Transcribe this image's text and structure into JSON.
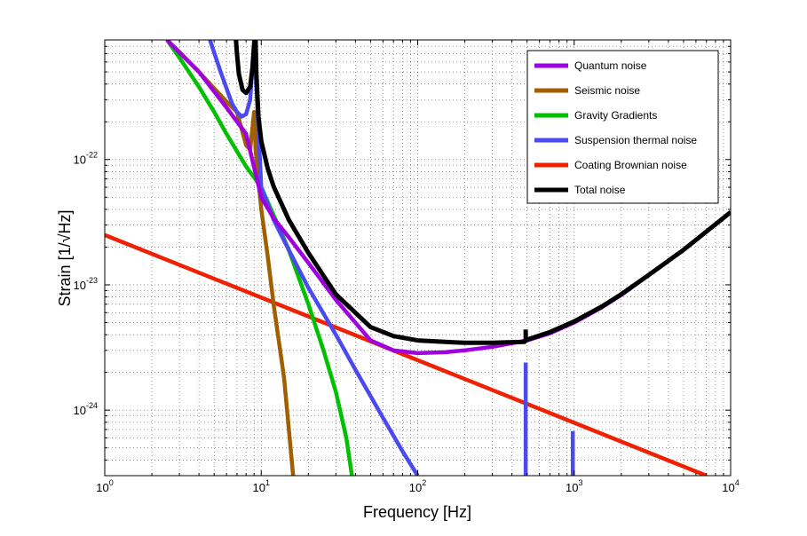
{
  "chart_data": {
    "type": "line",
    "title": "",
    "xlabel": "Frequency [Hz]",
    "ylabel": "Strain [1/√Hz]",
    "xscale": "log",
    "yscale": "log",
    "xlim": [
      1,
      10000
    ],
    "ylim": [
      3e-25,
      9e-22
    ],
    "grid": "major and minor, dotted",
    "legend_position": "top-right",
    "x_ticks": [
      {
        "base": "10",
        "exp": "0",
        "value": 1
      },
      {
        "base": "10",
        "exp": "1",
        "value": 10
      },
      {
        "base": "10",
        "exp": "2",
        "value": 100
      },
      {
        "base": "10",
        "exp": "3",
        "value": 1000
      },
      {
        "base": "10",
        "exp": "4",
        "value": 10000
      }
    ],
    "y_ticks": [
      {
        "base": "10",
        "exp": "-24",
        "value": 1e-24
      },
      {
        "base": "10",
        "exp": "-23",
        "value": 1e-23
      },
      {
        "base": "10",
        "exp": "-22",
        "value": 1e-22
      }
    ],
    "series": [
      {
        "name": "Quantum noise",
        "color": "#a000e0",
        "x": [
          2.5,
          4,
          6,
          8,
          10,
          12,
          15,
          20,
          30,
          50,
          70,
          100,
          150,
          200,
          300,
          500,
          700,
          1000,
          1500,
          2000,
          3000,
          5000,
          10000
        ],
        "y": [
          9e-22,
          5e-22,
          2.6e-22,
          1.6e-22,
          5e-23,
          3.4e-23,
          2.4e-23,
          1.5e-23,
          7.6e-24,
          3.6e-24,
          3e-24,
          2.85e-24,
          2.9e-24,
          3e-24,
          3.2e-24,
          3.6e-24,
          4.1e-24,
          5e-24,
          6.6e-24,
          8.3e-24,
          1.2e-23,
          1.9e-23,
          3.8e-23
        ]
      },
      {
        "name": "Seismic noise",
        "color": "#a06000",
        "x": [
          2.5,
          3,
          4,
          5,
          6,
          7,
          8,
          8.5,
          9,
          9.2,
          10,
          11,
          12,
          14,
          16
        ],
        "y": [
          9e-22,
          7.2e-22,
          5e-22,
          3.7e-22,
          2.9e-22,
          2.4e-22,
          1.3e-22,
          1.2e-22,
          2.4e-22,
          1.2e-22,
          4e-23,
          1.7e-23,
          7e-24,
          1.8e-24,
          3e-25
        ]
      },
      {
        "name": "Gravity Gradients",
        "color": "#00c000",
        "x": [
          2.5,
          3,
          4,
          5,
          6,
          8,
          10,
          12,
          15,
          20,
          25,
          30,
          35,
          38
        ],
        "y": [
          9e-22,
          6.5e-22,
          3.8e-22,
          2.4e-22,
          1.6e-22,
          8.8e-23,
          6e-23,
          3.6e-23,
          1.9e-23,
          7e-24,
          3e-24,
          1.4e-24,
          6e-25,
          3e-25
        ]
      },
      {
        "name": "Suspension thermal noise",
        "color": "#4a4af0",
        "x": [
          4.7,
          5.5,
          6.5,
          7,
          7.5,
          8,
          8.5,
          9,
          10,
          12,
          15,
          20,
          30,
          40,
          60,
          80,
          100
        ],
        "y": [
          9e-22,
          5e-22,
          2.8e-22,
          2.4e-22,
          2.2e-22,
          2.3e-22,
          3e-22,
          9e-22,
          6e-23,
          3.3e-23,
          1.9e-23,
          9.5e-24,
          4e-24,
          2.1e-24,
          8.7e-25,
          4.7e-25,
          3e-25
        ]
      },
      {
        "name": "Suspension thermal noise (violin peaks)",
        "color": "#4a4af0",
        "segments": [
          {
            "x": [
              490,
              490
            ],
            "y": [
              3e-25,
              2.4e-24
            ]
          },
          {
            "x": [
              980,
              980
            ],
            "y": [
              3e-25,
              6.8e-25
            ]
          }
        ]
      },
      {
        "name": "Coating Brownian noise",
        "color": "#f02000",
        "x": [
          1,
          7000
        ],
        "y": [
          2.5e-23,
          3e-25
        ]
      },
      {
        "name": "Total noise",
        "color": "#000000",
        "x": [
          6.9,
          7,
          7.2,
          7.6,
          8,
          8.5,
          8.8,
          9.0,
          9.1,
          9.2,
          9.3,
          9.6,
          10,
          11,
          12,
          15,
          20,
          30,
          50,
          70,
          100,
          150,
          200,
          300,
          480,
          500,
          700,
          1000,
          1500,
          2000,
          3000,
          5000,
          10000
        ],
        "y": [
          9e-22,
          7e-22,
          4.8e-22,
          3.6e-22,
          3.4e-22,
          3.8e-22,
          5.5e-22,
          8e-22,
          9e-22,
          9e-22,
          5e-22,
          2.2e-22,
          1.4e-22,
          8.5e-23,
          6.1e-23,
          3.3e-23,
          1.8e-23,
          8.4e-24,
          4.6e-24,
          3.9e-24,
          3.6e-24,
          3.5e-24,
          3.45e-24,
          3.45e-24,
          3.5e-24,
          3.65e-24,
          4.2e-24,
          5.1e-24,
          6.7e-24,
          8.4e-24,
          1.2e-23,
          1.9e-23,
          3.8e-23
        ]
      },
      {
        "name": "Total noise (violin peak)",
        "color": "#000000",
        "segments": [
          {
            "x": [
              490,
              490
            ],
            "y": [
              3.5e-24,
              4.4e-24
            ]
          }
        ]
      }
    ]
  },
  "legend": {
    "items": [
      {
        "label": "Quantum noise",
        "color": "#a000e0"
      },
      {
        "label": "Seismic noise",
        "color": "#a06000"
      },
      {
        "label": "Gravity Gradients",
        "color": "#00c000"
      },
      {
        "label": "Suspension thermal noise",
        "color": "#4a4af0"
      },
      {
        "label": "Coating Brownian noise",
        "color": "#f02000"
      },
      {
        "label": "Total noise",
        "color": "#000000"
      }
    ]
  }
}
